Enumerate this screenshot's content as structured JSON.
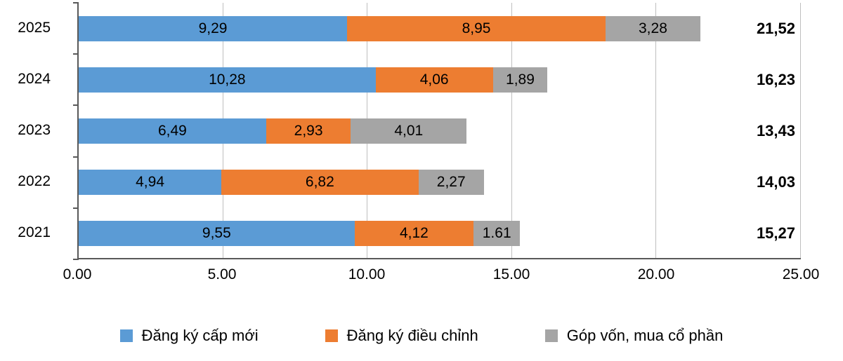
{
  "chart_data": {
    "type": "bar",
    "orientation": "horizontal",
    "stacked": true,
    "title": "",
    "xlabel": "",
    "ylabel": "",
    "grid": true,
    "legend_position": "bottom",
    "categories": [
      "2025",
      "2024",
      "2023",
      "2022",
      "2021"
    ],
    "series": [
      {
        "name": "Đăng ký cấp mới",
        "color": "#5b9bd5",
        "values": [
          9.29,
          10.28,
          6.49,
          4.94,
          9.55
        ],
        "labels": [
          "9,29",
          "10,28",
          "6,49",
          "4,94",
          "9,55"
        ]
      },
      {
        "name": "Đăng ký điều chỉnh",
        "color": "#ed7d31",
        "values": [
          8.95,
          4.06,
          2.93,
          6.82,
          4.12
        ],
        "labels": [
          "8,95",
          "4,06",
          "2,93",
          "6,82",
          "4,12"
        ]
      },
      {
        "name": "Góp vốn, mua cổ phần",
        "color": "#a5a5a5",
        "values": [
          3.28,
          1.89,
          4.01,
          2.27,
          1.61
        ],
        "labels": [
          "3,28",
          "1,89",
          "4,01",
          "2,27",
          "1.61"
        ]
      }
    ],
    "totals": [
      "21,52",
      "16,23",
      "13,43",
      "14,03",
      "15,27"
    ],
    "x_axis": {
      "min": 0,
      "max": 25,
      "step": 5,
      "tick_labels": [
        "0.00",
        "5.00",
        "10.00",
        "15.00",
        "20.00",
        "25.00"
      ]
    },
    "colors": {
      "axis": "#595959",
      "gridline": "#bfbfbf",
      "text": "#000000",
      "background": "#ffffff"
    }
  }
}
